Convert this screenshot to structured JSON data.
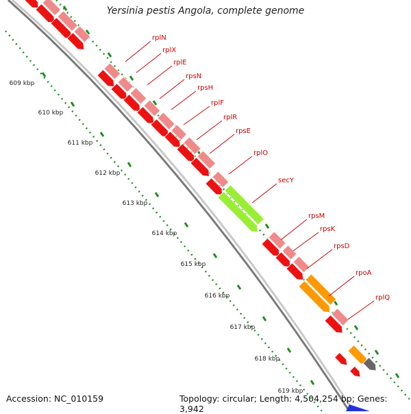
{
  "title": "Yersinia pestis Angola, complete genome",
  "footer": {
    "accession": "Accession: NC_010159",
    "stats": "Topology: circular; Length: 4,504,254 bp; Genes: 3,942"
  },
  "ticks": [
    "609 kbp",
    "610 kbp",
    "611 kbp",
    "612 kbp",
    "613 kbp",
    "614 kbp",
    "615 kbp",
    "616 kbp",
    "617 kbp",
    "618 kbp",
    "619 kbp"
  ],
  "genes": [
    "rplN",
    "rplX",
    "rplE",
    "rpsN",
    "rpsH",
    "rplF",
    "rplR",
    "rpsE",
    "rplO",
    "secY",
    "rpsM",
    "rpsK",
    "rpsD",
    "rpoA",
    "rplQ"
  ],
  "colors": {
    "cds": "#ee1111",
    "gene": "#f08a8a",
    "secY": "#99ee33",
    "rpoA": "#ff9900",
    "other": "#666666",
    "backbone": "#9a9a9a",
    "tick": "#1f8f1f",
    "label": "#cc0000"
  }
}
